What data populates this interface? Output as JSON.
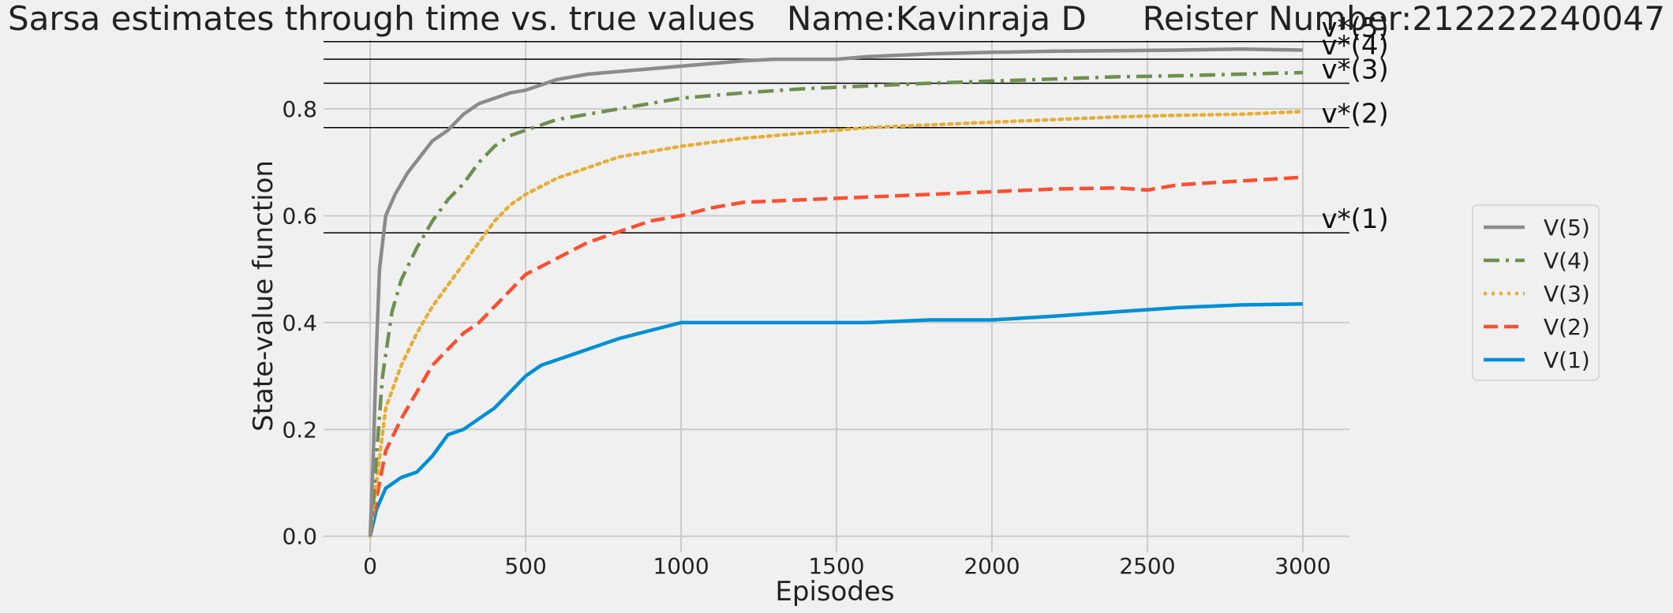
{
  "chart_data": {
    "type": "line",
    "title_parts": [
      "Sarsa estimates through time vs. true values",
      "Name:Kavinraja D",
      "Reister Number:212222240047"
    ],
    "xlabel": "Episodes",
    "ylabel": "State-value function",
    "xlim": [
      -150,
      3150
    ],
    "ylim": [
      -0.03,
      0.93
    ],
    "xticks": [
      0,
      500,
      1000,
      1500,
      2000,
      2500,
      3000
    ],
    "yticks": [
      0.0,
      0.2,
      0.4,
      0.6,
      0.8
    ],
    "grid": true,
    "legend_position": "right",
    "reference_lines": [
      {
        "label": "v*(1)",
        "value": 0.568
      },
      {
        "label": "v*(2)",
        "value": 0.765
      },
      {
        "label": "v*(3)",
        "value": 0.848
      },
      {
        "label": "v*(4)",
        "value": 0.893
      },
      {
        "label": "v*(5)",
        "value": 0.926
      }
    ],
    "series": [
      {
        "name": "V(5)",
        "color": "#8b8b8b",
        "dash": "solid",
        "x": [
          0,
          10,
          20,
          30,
          50,
          80,
          120,
          160,
          200,
          250,
          300,
          350,
          400,
          450,
          500,
          550,
          600,
          700,
          800,
          900,
          1000,
          1100,
          1200,
          1300,
          1400,
          1500,
          1600,
          1800,
          2000,
          2200,
          2400,
          2600,
          2800,
          3000
        ],
        "y": [
          0.0,
          0.15,
          0.35,
          0.5,
          0.6,
          0.64,
          0.68,
          0.71,
          0.74,
          0.76,
          0.79,
          0.81,
          0.82,
          0.83,
          0.835,
          0.845,
          0.855,
          0.865,
          0.87,
          0.875,
          0.88,
          0.885,
          0.89,
          0.893,
          0.893,
          0.893,
          0.898,
          0.903,
          0.906,
          0.908,
          0.909,
          0.91,
          0.912,
          0.91
        ]
      },
      {
        "name": "V(4)",
        "color": "#6d904f",
        "dash": "dashdot",
        "x": [
          0,
          10,
          20,
          40,
          70,
          100,
          150,
          200,
          250,
          300,
          350,
          400,
          450,
          500,
          600,
          700,
          800,
          900,
          1000,
          1200,
          1400,
          1600,
          1800,
          2000,
          2200,
          2400,
          2600,
          2800,
          3000
        ],
        "y": [
          0.0,
          0.06,
          0.15,
          0.3,
          0.42,
          0.48,
          0.54,
          0.59,
          0.63,
          0.66,
          0.7,
          0.73,
          0.75,
          0.76,
          0.78,
          0.79,
          0.8,
          0.81,
          0.82,
          0.83,
          0.838,
          0.843,
          0.848,
          0.852,
          0.856,
          0.86,
          0.862,
          0.865,
          0.868
        ]
      },
      {
        "name": "V(3)",
        "color": "#e5ae38",
        "dash": "dotted",
        "x": [
          0,
          20,
          50,
          100,
          150,
          200,
          250,
          300,
          350,
          400,
          450,
          500,
          600,
          700,
          800,
          900,
          1000,
          1200,
          1400,
          1600,
          1800,
          2000,
          2200,
          2400,
          2600,
          2800,
          3000
        ],
        "y": [
          0.0,
          0.1,
          0.24,
          0.32,
          0.38,
          0.43,
          0.47,
          0.51,
          0.55,
          0.59,
          0.62,
          0.64,
          0.67,
          0.69,
          0.71,
          0.72,
          0.73,
          0.745,
          0.755,
          0.765,
          0.77,
          0.775,
          0.78,
          0.785,
          0.788,
          0.79,
          0.795
        ]
      },
      {
        "name": "V(2)",
        "color": "#fc4f30",
        "dash": "dashed",
        "x": [
          0,
          20,
          50,
          100,
          150,
          200,
          250,
          300,
          350,
          400,
          450,
          500,
          600,
          700,
          800,
          900,
          1000,
          1100,
          1200,
          1400,
          1600,
          1800,
          2000,
          2200,
          2400,
          2500,
          2600,
          2800,
          3000
        ],
        "y": [
          0.0,
          0.07,
          0.16,
          0.22,
          0.27,
          0.32,
          0.35,
          0.38,
          0.4,
          0.43,
          0.46,
          0.49,
          0.52,
          0.55,
          0.57,
          0.59,
          0.6,
          0.615,
          0.625,
          0.63,
          0.635,
          0.64,
          0.645,
          0.65,
          0.652,
          0.648,
          0.658,
          0.665,
          0.672
        ]
      },
      {
        "name": "V(1)",
        "color": "#008fd5",
        "dash": "solid",
        "x": [
          0,
          20,
          50,
          100,
          150,
          200,
          250,
          300,
          350,
          400,
          450,
          500,
          550,
          600,
          700,
          800,
          900,
          1000,
          1100,
          1200,
          1400,
          1600,
          1800,
          2000,
          2200,
          2400,
          2600,
          2800,
          3000
        ],
        "y": [
          0.0,
          0.05,
          0.09,
          0.11,
          0.12,
          0.15,
          0.19,
          0.2,
          0.22,
          0.24,
          0.27,
          0.3,
          0.32,
          0.33,
          0.35,
          0.37,
          0.385,
          0.4,
          0.4,
          0.4,
          0.4,
          0.4,
          0.405,
          0.405,
          0.412,
          0.42,
          0.428,
          0.433,
          0.435
        ]
      }
    ]
  }
}
